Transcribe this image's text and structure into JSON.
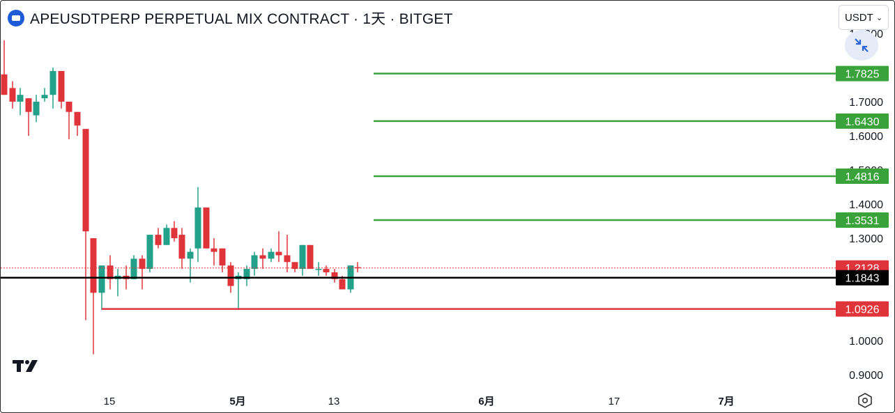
{
  "header": {
    "title": "APEUSDTPERP PERPETUAL MIX CONTRACT · 1天 · BITGET",
    "currency": "USDT",
    "currency_chevron": "chevron-down-icon"
  },
  "price_axis": {
    "ticks": [
      "1.9000",
      "1.7000",
      "1.6000",
      "1.5000",
      "1.4000",
      "1.3000",
      "1.0000",
      "0.9000"
    ]
  },
  "time_axis": {
    "ticks": [
      "15",
      "5月",
      "13",
      "6月",
      "17",
      "7月"
    ]
  },
  "levels": [
    {
      "price": "1.7825",
      "color": "#3aa23a",
      "kind": "target"
    },
    {
      "price": "1.6430",
      "color": "#3aa23a",
      "kind": "target"
    },
    {
      "price": "1.4816",
      "color": "#3aa23a",
      "kind": "target"
    },
    {
      "price": "1.3531",
      "color": "#3aa23a",
      "kind": "target"
    },
    {
      "price": "1.2128",
      "color": "#e0343b",
      "kind": "current"
    },
    {
      "price": "1.1843",
      "color": "#000000",
      "kind": "entry"
    },
    {
      "price": "1.0926",
      "color": "#e0343b",
      "kind": "stop"
    }
  ],
  "colors": {
    "up": "#22a08a",
    "down": "#e0343b",
    "target": "#3aa23a",
    "stop": "#e0343b",
    "entry": "#000000"
  },
  "icons": [
    "logo-icon",
    "shrink-icon",
    "tradingview-logo",
    "settings-icon"
  ]
}
